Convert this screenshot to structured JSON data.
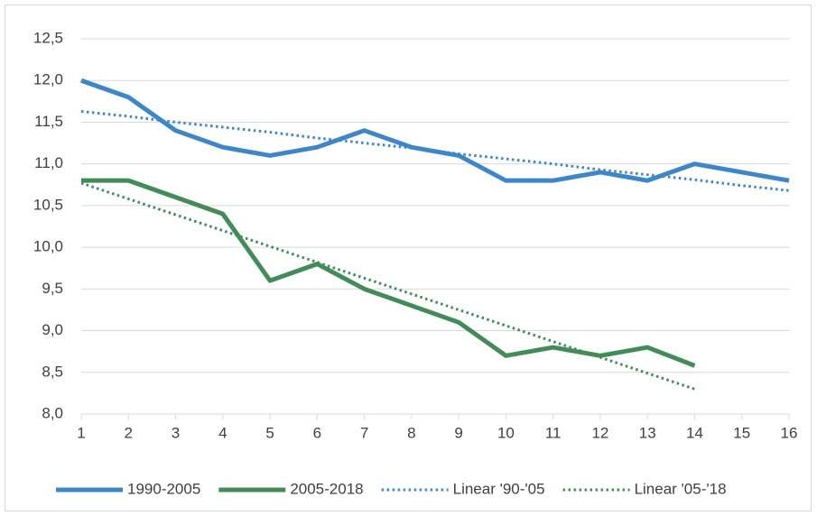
{
  "chart_data": {
    "type": "line",
    "x": [
      1,
      2,
      3,
      4,
      5,
      6,
      7,
      8,
      9,
      10,
      11,
      12,
      13,
      14,
      15,
      16
    ],
    "xlim": [
      1,
      16
    ],
    "xticks": [
      1,
      2,
      3,
      4,
      5,
      6,
      7,
      8,
      9,
      10,
      11,
      12,
      13,
      14,
      15,
      16
    ],
    "ylim": [
      8,
      12.5
    ],
    "yticks": [
      {
        "value": 8,
        "label": "8,0"
      },
      {
        "value": 8.5,
        "label": "8,5"
      },
      {
        "value": 9,
        "label": "9,0"
      },
      {
        "value": 9.5,
        "label": "9,5"
      },
      {
        "value": 10,
        "label": "10,0"
      },
      {
        "value": 10.5,
        "label": "10,5"
      },
      {
        "value": 11,
        "label": "11,0"
      },
      {
        "value": 11.5,
        "label": "11,5"
      },
      {
        "value": 12,
        "label": "12,0"
      },
      {
        "value": 12.5,
        "label": "12,5"
      }
    ],
    "grid": true,
    "legend": "bottom",
    "series": [
      {
        "name": "1990-2005",
        "color": "#3d87c8",
        "style": "solid",
        "values": [
          12.0,
          11.8,
          11.4,
          11.2,
          11.1,
          11.2,
          11.4,
          11.2,
          11.1,
          10.8,
          10.8,
          10.9,
          10.8,
          11.0,
          10.9,
          10.8
        ]
      },
      {
        "name": "2005-2018",
        "color": "#438c5a",
        "style": "solid",
        "values": [
          10.8,
          10.8,
          10.6,
          10.4,
          9.6,
          9.8,
          9.5,
          9.3,
          9.1,
          8.7,
          8.8,
          8.7,
          8.8,
          8.58,
          null,
          null
        ]
      },
      {
        "name": "Linear '90-'05",
        "color": "#3d87c8",
        "style": "dotted",
        "values": [
          11.63,
          11.57,
          11.5,
          11.44,
          11.38,
          11.31,
          11.25,
          11.19,
          11.12,
          11.06,
          11.0,
          10.93,
          10.87,
          10.81,
          10.74,
          10.68
        ]
      },
      {
        "name": "Linear '05-'18",
        "color": "#438c5a",
        "style": "dotted",
        "values": [
          10.77,
          10.58,
          10.39,
          10.2,
          10.01,
          9.82,
          9.63,
          9.44,
          9.25,
          9.06,
          8.87,
          8.68,
          8.49,
          8.3,
          null,
          null
        ]
      }
    ]
  }
}
